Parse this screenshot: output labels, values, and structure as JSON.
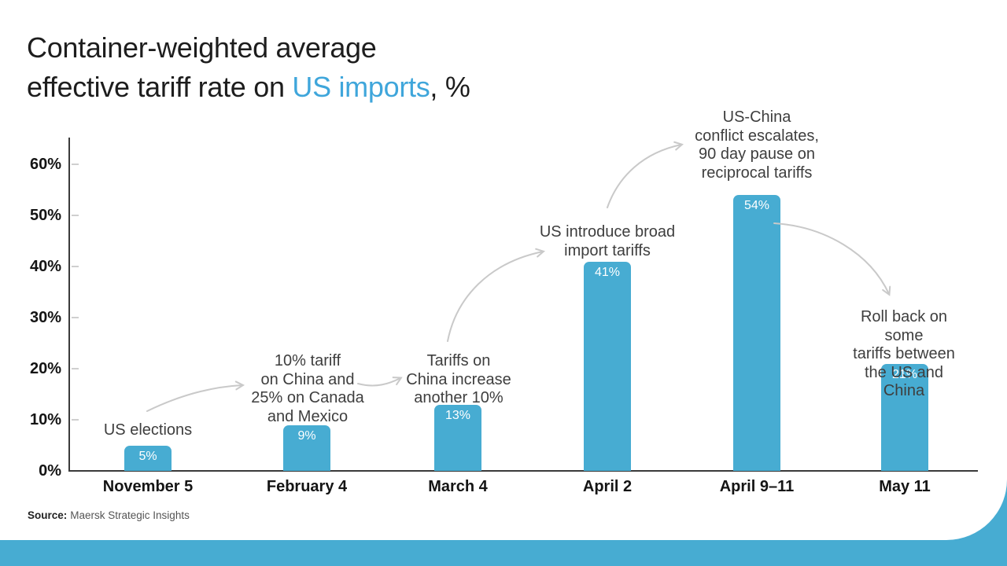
{
  "title": {
    "line1": "Container-weighted average",
    "line2_prefix": "effective tariff rate on ",
    "line2_highlight": "US imports",
    "line2_suffix": ", %"
  },
  "colors": {
    "bar": "#47ACD2",
    "title_accent": "#3FA6DB",
    "arrow": "#C9C9C9",
    "wave": "#47ACD2"
  },
  "chart_data": {
    "type": "bar",
    "title": "Container-weighted average effective tariff rate on US imports, %",
    "categories": [
      "November 5",
      "February 4",
      "March 4",
      "April 2",
      "April 9–11",
      "May 11"
    ],
    "values": [
      5,
      9,
      13,
      41,
      54,
      21
    ],
    "bar_labels": [
      "5%",
      "9%",
      "13%",
      "41%",
      "54%",
      "21%"
    ],
    "xlabel": "",
    "ylabel": "",
    "ylim": [
      0,
      65
    ],
    "y_ticks": [
      "0%",
      "10%",
      "20%",
      "30%",
      "40%",
      "50%",
      "60%"
    ],
    "grid": false,
    "legend": "none",
    "annotations": [
      "US elections",
      "10% tariff\non China and\n25% on Canada\nand Mexico",
      "Tariffs on\nChina increase\nanother 10%",
      "US introduce broad\nimport tariffs",
      "US-China\nconflict escalates,\n90 day pause on\nreciprocal tariffs",
      "Roll back on some\ntariffs between\nthe US and China"
    ]
  },
  "source": {
    "label": "Source:",
    "text": "Maersk Strategic Insights"
  }
}
